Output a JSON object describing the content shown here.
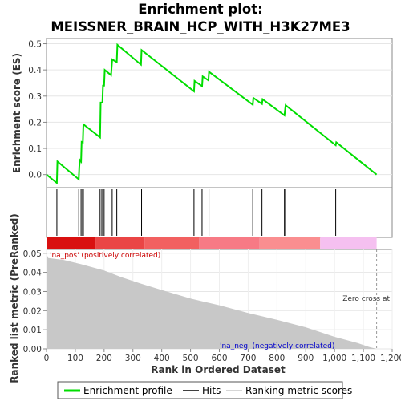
{
  "chart_data": {
    "type": "line",
    "title_lines": [
      "Enrichment plot:",
      "MEISSNER_BRAIN_HCP_WITH_H3K27ME3"
    ],
    "top_panel": {
      "ylabel": "Enrichment score (ES)",
      "ylim": [
        -0.05,
        0.52
      ],
      "yticks": [
        0.0,
        0.1,
        0.2,
        0.3,
        0.4,
        0.5
      ],
      "ytick_labels": [
        "0.0",
        "0.1",
        "0.2",
        "0.3",
        "0.4",
        "0.5"
      ],
      "series_name": "Enrichment profile",
      "color": "#00dd00",
      "points": [
        [
          0,
          0.0
        ],
        [
          36,
          -0.032
        ],
        [
          38,
          0.05
        ],
        [
          112,
          -0.018
        ],
        [
          114,
          0.03
        ],
        [
          116,
          0.055
        ],
        [
          120,
          0.05
        ],
        [
          122,
          0.125
        ],
        [
          126,
          0.123
        ],
        [
          128,
          0.192
        ],
        [
          186,
          0.142
        ],
        [
          188,
          0.275
        ],
        [
          194,
          0.275
        ],
        [
          196,
          0.34
        ],
        [
          200,
          0.34
        ],
        [
          202,
          0.4
        ],
        [
          224,
          0.38
        ],
        [
          228,
          0.44
        ],
        [
          244,
          0.43
        ],
        [
          246,
          0.496
        ],
        [
          328,
          0.42
        ],
        [
          330,
          0.476
        ],
        [
          512,
          0.318
        ],
        [
          514,
          0.358
        ],
        [
          540,
          0.338
        ],
        [
          542,
          0.375
        ],
        [
          562,
          0.36
        ],
        [
          564,
          0.393
        ],
        [
          716,
          0.267
        ],
        [
          718,
          0.293
        ],
        [
          748,
          0.27
        ],
        [
          750,
          0.288
        ],
        [
          826,
          0.226
        ],
        [
          830,
          0.265
        ],
        [
          1004,
          0.112
        ],
        [
          1006,
          0.123
        ],
        [
          1146,
          0.0
        ]
      ]
    },
    "hits": {
      "name": "Hits",
      "ranks": [
        36,
        112,
        120,
        125,
        128,
        186,
        192,
        196,
        200,
        228,
        244,
        330,
        512,
        540,
        564,
        716,
        748,
        826,
        830,
        1004
      ]
    },
    "bottom_panel": {
      "ylabel": "Ranked list metric (PreRanked)",
      "xlabel": "Rank in Ordered Dataset",
      "xlim": [
        0,
        1200
      ],
      "xticks": [
        0,
        100,
        200,
        300,
        400,
        500,
        600,
        700,
        800,
        900,
        1000,
        1100,
        1200
      ],
      "xtick_labels": [
        "0",
        "100",
        "200",
        "300",
        "400",
        "500",
        "600",
        "700",
        "800",
        "900",
        "1,000",
        "1,100",
        "1,200"
      ],
      "ylim": [
        0.0,
        0.052
      ],
      "yticks": [
        0.0,
        0.01,
        0.02,
        0.03,
        0.04,
        0.05
      ],
      "ytick_labels": [
        "0.00",
        "0.01",
        "0.02",
        "0.03",
        "0.04",
        "0.05"
      ],
      "series_name": "Ranking metric scores",
      "metric_curve": [
        [
          0,
          0.0515
        ],
        [
          2,
          0.049
        ],
        [
          6,
          0.0475
        ],
        [
          60,
          0.0465
        ],
        [
          120,
          0.0443
        ],
        [
          200,
          0.041
        ],
        [
          260,
          0.0375
        ],
        [
          330,
          0.034
        ],
        [
          400,
          0.0308
        ],
        [
          500,
          0.0263
        ],
        [
          600,
          0.0228
        ],
        [
          700,
          0.0188
        ],
        [
          800,
          0.0152
        ],
        [
          900,
          0.0113
        ],
        [
          1000,
          0.0063
        ],
        [
          1080,
          0.003
        ],
        [
          1120,
          0.001
        ],
        [
          1146,
          0.0
        ]
      ],
      "zero_cross_rank": 1146,
      "zero_cross_label": "Zero cross at",
      "pos_label": "'na_pos' (positively correlated)",
      "neg_label": "'na_neg' (negatively correlated)",
      "pos_color": "#cc0000",
      "neg_color": "#0000cc"
    },
    "color_bar_segments": [
      {
        "start": 0,
        "end": 170,
        "color": "#d91010"
      },
      {
        "start": 170,
        "end": 340,
        "color": "#ea4545"
      },
      {
        "start": 340,
        "end": 530,
        "color": "#f26060"
      },
      {
        "start": 530,
        "end": 740,
        "color": "#f77a85"
      },
      {
        "start": 740,
        "end": 950,
        "color": "#fa8e90"
      },
      {
        "start": 950,
        "end": 1146,
        "color": "#f5c0f0"
      }
    ],
    "legend": [
      {
        "label": "Enrichment profile",
        "color": "#00dd00",
        "style": "thick-line"
      },
      {
        "label": "Hits",
        "color": "#000000",
        "style": "thin-line"
      },
      {
        "label": "Ranking metric scores",
        "color": "#c8c8c8",
        "style": "thin-line"
      }
    ]
  }
}
